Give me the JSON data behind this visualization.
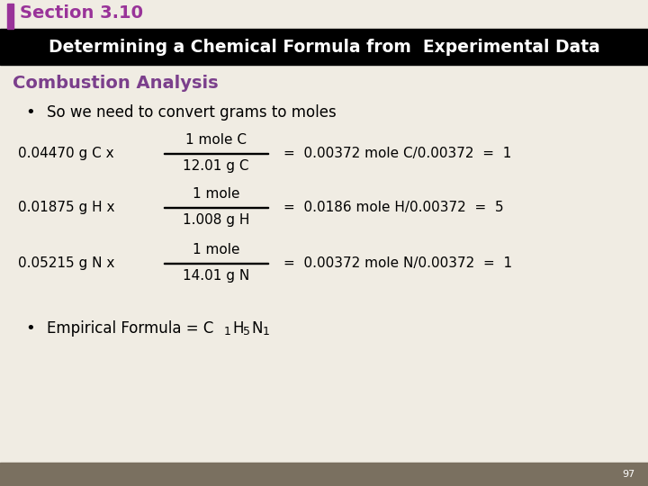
{
  "section_title": "Section 3.10",
  "section_title_color": "#993399",
  "header_text": "Determining a Chemical Formula from  Experimental Data",
  "header_bg": "#000000",
  "header_text_color": "#ffffff",
  "subheader": "Combustion Analysis",
  "subheader_color": "#7b3f8c",
  "bg_color": "#f0ece3",
  "footer_bg": "#7a7060",
  "page_number": "97",
  "bullet1": "So we need to convert grams to moles",
  "section_bar_color": "#993399",
  "eq1_left": "0.04470 g C x",
  "eq1_num": "1 mole C",
  "eq1_den": "12.01 g C",
  "eq1_right": "=  0.00372 mole C/0.00372  =  1",
  "eq2_left": "0.01875 g H x",
  "eq2_num": "1 mole",
  "eq2_den": "1.008 g H",
  "eq2_right": "=  0.0186 mole H/0.00372  =  5",
  "eq3_left": "0.05215 g N x",
  "eq3_num": "1 mole",
  "eq3_den": "14.01 g N",
  "eq3_right": "=  0.00372 mole N/0.00372  =  1"
}
